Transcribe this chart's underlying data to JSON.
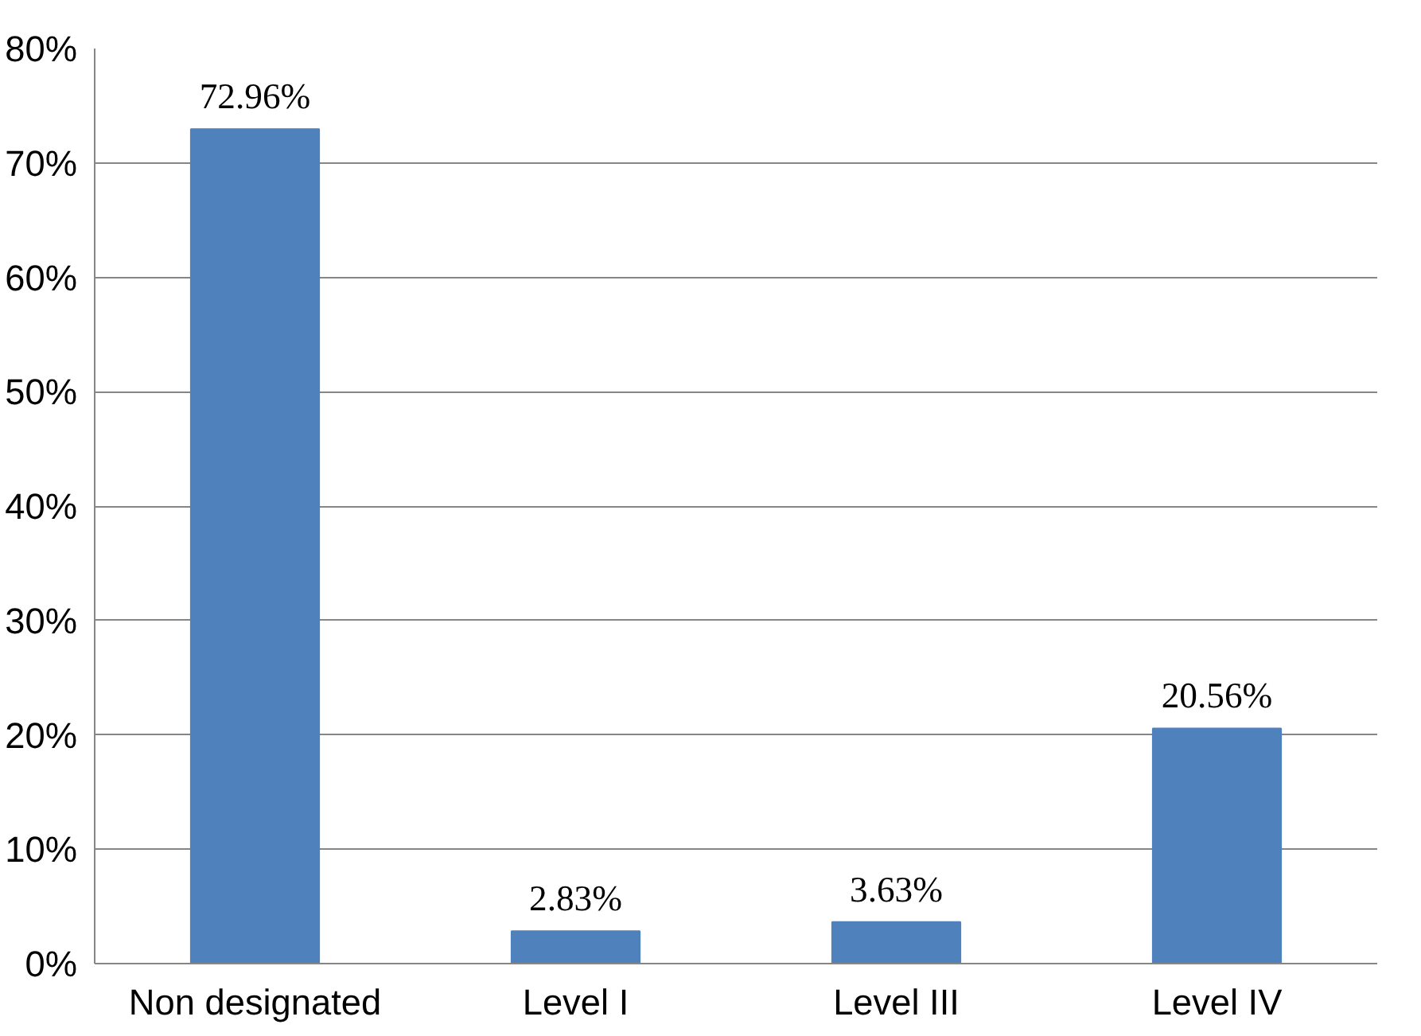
{
  "chart_data": {
    "type": "bar",
    "categories": [
      "Non designated",
      "Level I",
      "Level III",
      "Level IV"
    ],
    "values": [
      72.96,
      2.83,
      3.63,
      20.56
    ],
    "value_labels": [
      "72.96%",
      "2.83%",
      "3.63%",
      "20.56%"
    ],
    "color": "#4f81bd",
    "ylim": [
      0,
      80
    ],
    "yticks": [
      {
        "value": 0,
        "label": "0%"
      },
      {
        "value": 10,
        "label": "10%"
      },
      {
        "value": 20,
        "label": "20%"
      },
      {
        "value": 30,
        "label": "30%"
      },
      {
        "value": 40,
        "label": "40%"
      },
      {
        "value": 50,
        "label": "50%"
      },
      {
        "value": 60,
        "label": "60%"
      },
      {
        "value": 70,
        "label": "70%"
      },
      {
        "value": 80,
        "label": "80%"
      }
    ],
    "grid": "y"
  }
}
